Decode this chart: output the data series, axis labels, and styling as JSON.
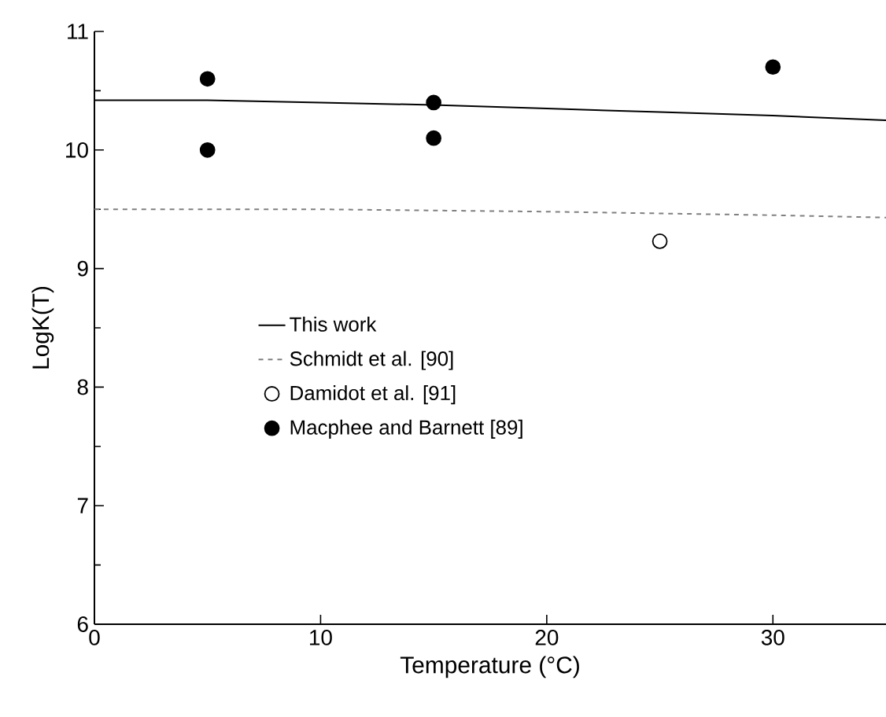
{
  "chart_data": {
    "type": "scatter",
    "xlabel": "Temperature (°C)",
    "ylabel": "LogK(T)",
    "xlim": [
      0,
      35
    ],
    "ylim": [
      6,
      11
    ],
    "xticks": [
      0,
      10,
      20,
      30
    ],
    "yticks": [
      6,
      7,
      8,
      9,
      10,
      11
    ],
    "legend": "bottom left",
    "grid": false,
    "series": [
      {
        "name": "This work",
        "type": "line",
        "line_style": "solid",
        "marker": "none",
        "color": "#000000",
        "x": [
          0,
          5,
          10,
          15,
          20,
          25,
          30,
          35
        ],
        "values": [
          10.42,
          10.42,
          10.4,
          10.38,
          10.35,
          10.32,
          10.29,
          10.25
        ]
      },
      {
        "name": "Schmidt et al. [90]",
        "type": "line",
        "line_style": "dashed",
        "marker": "none",
        "color": "#808080",
        "x": [
          0,
          10,
          20,
          30,
          35
        ],
        "values": [
          9.5,
          9.5,
          9.48,
          9.45,
          9.43
        ]
      },
      {
        "name": "Damidot et al. [91]",
        "marker": "circle",
        "color": "#ffffff",
        "x": [
          25
        ],
        "values": [
          9.23
        ]
      },
      {
        "name": "Macphee and Barnett [89]",
        "marker": "circle",
        "color": "#000000",
        "x": [
          5,
          5,
          15,
          15,
          30
        ],
        "values": [
          10.6,
          10.0,
          10.4,
          10.1,
          10.7
        ]
      }
    ]
  }
}
